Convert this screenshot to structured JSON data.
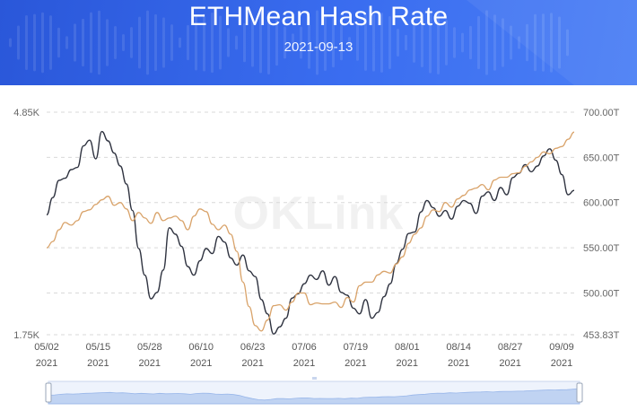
{
  "header": {
    "title": "ETHMean Hash Rate",
    "date": "2021-09-13",
    "bg_color": "#3262e6"
  },
  "watermark": "OKLink",
  "chart_data": {
    "type": "line",
    "title": "ETHMean Hash Rate",
    "subtitle": "2021-09-13",
    "x_ticks": [
      {
        "date": "05/02",
        "year": "2021"
      },
      {
        "date": "05/15",
        "year": "2021"
      },
      {
        "date": "05/28",
        "year": "2021"
      },
      {
        "date": "06/10",
        "year": "2021"
      },
      {
        "date": "06/23",
        "year": "2021"
      },
      {
        "date": "07/06",
        "year": "2021"
      },
      {
        "date": "07/19",
        "year": "2021"
      },
      {
        "date": "08/01",
        "year": "2021"
      },
      {
        "date": "08/14",
        "year": "2021"
      },
      {
        "date": "08/27",
        "year": "2021"
      },
      {
        "date": "09/09",
        "year": "2021"
      }
    ],
    "x_range": [
      "05/02",
      "09/12"
    ],
    "left_axis": {
      "min": 1750,
      "max": 4850,
      "ticks": [
        "4.85K",
        "1.75K"
      ]
    },
    "right_axis": {
      "min": 453.83,
      "max": 700,
      "ticks": [
        "700.00T",
        "650.00T",
        "600.00T",
        "550.00T",
        "500.00T",
        "453.83T"
      ]
    },
    "grid": "horizontal-dashed",
    "series": [
      {
        "axis": "left",
        "color": "#2f3340",
        "values": [
          3420,
          3660,
          3900,
          3930,
          4050,
          4080,
          4380,
          4460,
          4200,
          4580,
          4450,
          4280,
          4100,
          3850,
          3480,
          2950,
          2580,
          2250,
          2340,
          2650,
          3240,
          3150,
          2980,
          2700,
          2580,
          2780,
          2950,
          2880,
          3120,
          3040,
          2820,
          2720,
          2860,
          2640,
          2560,
          2240,
          2040,
          1760,
          1860,
          1980,
          2260,
          2320,
          2460,
          2580,
          2520,
          2640,
          2440,
          2560,
          2340,
          2300,
          2120,
          2040,
          2240,
          1980,
          2060,
          2280,
          2460,
          2740,
          2940,
          3160,
          3180,
          3460,
          3620,
          3520,
          3400,
          3480,
          3360,
          3540,
          3620,
          3580,
          3440,
          3680,
          3740,
          3620,
          3800,
          3700,
          3940,
          4000,
          4120,
          4020,
          4100,
          4240,
          4340,
          4180,
          3980,
          3700,
          3760
        ]
      },
      {
        "axis": "right",
        "color": "#d9a36a",
        "values": [
          550,
          557,
          570,
          578,
          575,
          580,
          590,
          592,
          598,
          603,
          607,
          597,
          600,
          593,
          580,
          589,
          583,
          577,
          589,
          580,
          583,
          585,
          580,
          570,
          585,
          593,
          590,
          576,
          570,
          575,
          565,
          546,
          512,
          485,
          464,
          458,
          470,
          486,
          487,
          481,
          490,
          500,
          500,
          487,
          489,
          488,
          488,
          490,
          484,
          495,
          490,
          508,
          512,
          512,
          520,
          524,
          522,
          532,
          540,
          555,
          565,
          572,
          585,
          592,
          590,
          600,
          595,
          604,
          608,
          614,
          616,
          620,
          614,
          625,
          628,
          628,
          632,
          633,
          640,
          645,
          650,
          656,
          654,
          660,
          662,
          670,
          678
        ]
      }
    ]
  }
}
